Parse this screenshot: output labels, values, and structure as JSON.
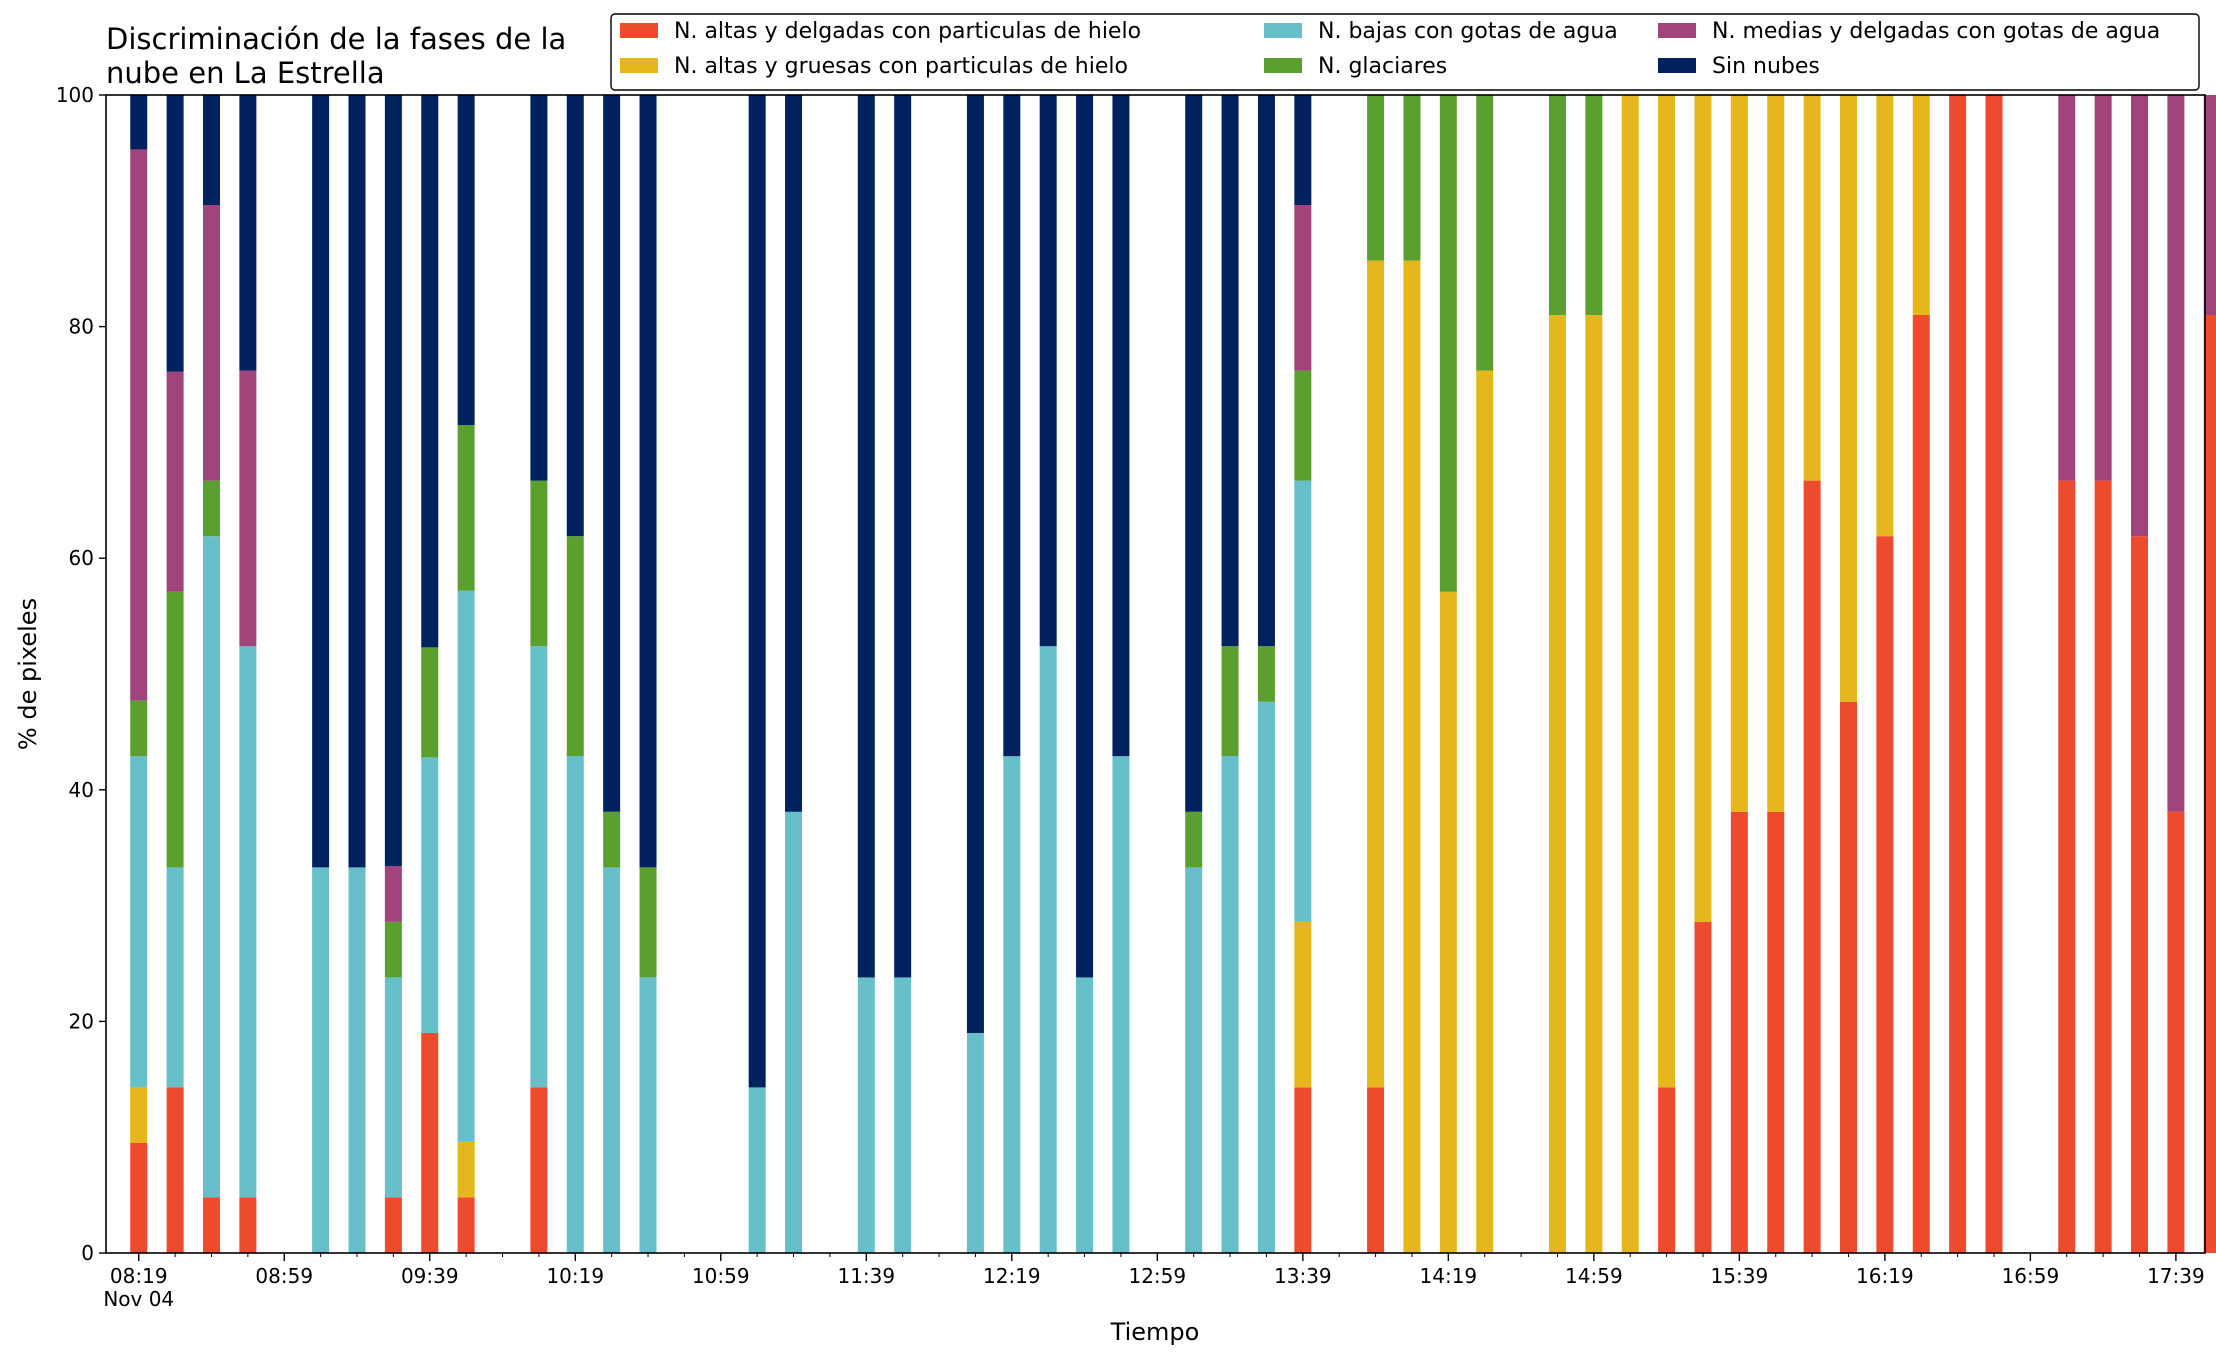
{
  "chart_data": {
    "type": "bar",
    "stacked": true,
    "title_lines": [
      "Discriminación de la fases de la",
      "nube en La Estrella"
    ],
    "xlabel": "Tiempo",
    "ylabel": "% de pixeles",
    "ylim": [
      0,
      100
    ],
    "yticks": [
      "0",
      "20",
      "40",
      "60",
      "80",
      "100"
    ],
    "xlim_minutes": [
      490,
      1067
    ],
    "xticks": [
      {
        "minute": 499,
        "label": "08:19",
        "sublabel": "Nov 04"
      },
      {
        "minute": 539,
        "label": "08:59"
      },
      {
        "minute": 579,
        "label": "09:39"
      },
      {
        "minute": 619,
        "label": "10:19"
      },
      {
        "minute": 659,
        "label": "10:59"
      },
      {
        "minute": 699,
        "label": "11:39"
      },
      {
        "minute": 739,
        "label": "12:19"
      },
      {
        "minute": 779,
        "label": "12:59"
      },
      {
        "minute": 819,
        "label": "13:39"
      },
      {
        "minute": 859,
        "label": "14:19"
      },
      {
        "minute": 899,
        "label": "14:59"
      },
      {
        "minute": 939,
        "label": "15:39"
      },
      {
        "minute": 979,
        "label": "16:19"
      },
      {
        "minute": 1019,
        "label": "16:59"
      },
      {
        "minute": 1059,
        "label": "17:39"
      }
    ],
    "legend_position": "top-right",
    "series": [
      {
        "key": "thin_ice",
        "name": "N. altas y delgadas con particulas de hielo",
        "color": "#ee4a2d"
      },
      {
        "key": "thick_ice",
        "name": "N. altas y gruesas con particulas de hielo",
        "color": "#e6b71c"
      },
      {
        "key": "low_water",
        "name": "N. bajas con gotas de agua",
        "color": "#67bfca"
      },
      {
        "key": "glacier",
        "name": "N. glaciares",
        "color": "#5b9f2f"
      },
      {
        "key": "mid_water",
        "name": "N. medias y delgadas con gotas de agua",
        "color": "#a1447b"
      },
      {
        "key": "clear",
        "name": "Sin nubes",
        "color": "#02215f"
      }
    ],
    "bars": [
      {
        "time": "08:19",
        "values": {
          "thin_ice": 9.5,
          "thick_ice": 4.8,
          "low_water": 28.6,
          "glacier": 4.8,
          "mid_water": 47.6,
          "clear": 4.7
        }
      },
      {
        "time": "08:29",
        "values": {
          "thin_ice": 14.3,
          "thick_ice": 0,
          "low_water": 19.0,
          "glacier": 23.8,
          "mid_water": 19.0,
          "clear": 23.9
        }
      },
      {
        "time": "08:39",
        "values": {
          "thin_ice": 4.8,
          "thick_ice": 0,
          "low_water": 57.1,
          "glacier": 4.8,
          "mid_water": 23.8,
          "clear": 9.5
        }
      },
      {
        "time": "08:49",
        "values": {
          "thin_ice": 4.8,
          "thick_ice": 0,
          "low_water": 47.6,
          "glacier": 0,
          "mid_water": 23.8,
          "clear": 23.8
        }
      },
      {
        "time": "09:09",
        "values": {
          "thin_ice": 0,
          "thick_ice": 0,
          "low_water": 33.3,
          "glacier": 0,
          "mid_water": 0,
          "clear": 66.7
        }
      },
      {
        "time": "09:19",
        "values": {
          "thin_ice": 0,
          "thick_ice": 0,
          "low_water": 33.3,
          "glacier": 0,
          "mid_water": 0,
          "clear": 66.7
        }
      },
      {
        "time": "09:29",
        "values": {
          "thin_ice": 4.8,
          "thick_ice": 0,
          "low_water": 19.0,
          "glacier": 4.8,
          "mid_water": 4.8,
          "clear": 66.6
        }
      },
      {
        "time": "09:39",
        "values": {
          "thin_ice": 19.0,
          "thick_ice": 0,
          "low_water": 23.8,
          "glacier": 9.5,
          "mid_water": 0,
          "clear": 47.7
        }
      },
      {
        "time": "09:49",
        "values": {
          "thin_ice": 4.8,
          "thick_ice": 4.8,
          "low_water": 47.6,
          "glacier": 14.3,
          "mid_water": 0,
          "clear": 28.5
        }
      },
      {
        "time": "10:09",
        "values": {
          "thin_ice": 14.3,
          "thick_ice": 0,
          "low_water": 38.1,
          "glacier": 14.3,
          "mid_water": 0,
          "clear": 33.3
        }
      },
      {
        "time": "10:19",
        "values": {
          "thin_ice": 0,
          "thick_ice": 0,
          "low_water": 42.9,
          "glacier": 19.0,
          "mid_water": 0,
          "clear": 38.1
        }
      },
      {
        "time": "10:29",
        "values": {
          "thin_ice": 0,
          "thick_ice": 0,
          "low_water": 33.3,
          "glacier": 4.8,
          "mid_water": 0,
          "clear": 61.9
        }
      },
      {
        "time": "10:39",
        "values": {
          "thin_ice": 0,
          "thick_ice": 0,
          "low_water": 23.8,
          "glacier": 9.5,
          "mid_water": 0,
          "clear": 66.7
        }
      },
      {
        "time": "11:09",
        "values": {
          "thin_ice": 0,
          "thick_ice": 0,
          "low_water": 14.3,
          "glacier": 0,
          "mid_water": 0,
          "clear": 85.7
        }
      },
      {
        "time": "11:19",
        "values": {
          "thin_ice": 0,
          "thick_ice": 0,
          "low_water": 38.1,
          "glacier": 0,
          "mid_water": 0,
          "clear": 61.9
        }
      },
      {
        "time": "11:39",
        "values": {
          "thin_ice": 0,
          "thick_ice": 0,
          "low_water": 23.8,
          "glacier": 0,
          "mid_water": 0,
          "clear": 76.2
        }
      },
      {
        "time": "11:49",
        "values": {
          "thin_ice": 0,
          "thick_ice": 0,
          "low_water": 23.8,
          "glacier": 0,
          "mid_water": 0,
          "clear": 76.2
        }
      },
      {
        "time": "12:09",
        "values": {
          "thin_ice": 0,
          "thick_ice": 0,
          "low_water": 19.0,
          "glacier": 0,
          "mid_water": 0,
          "clear": 81.0
        }
      },
      {
        "time": "12:19",
        "values": {
          "thin_ice": 0,
          "thick_ice": 0,
          "low_water": 42.9,
          "glacier": 0,
          "mid_water": 0,
          "clear": 57.1
        }
      },
      {
        "time": "12:29",
        "values": {
          "thin_ice": 0,
          "thick_ice": 0,
          "low_water": 52.4,
          "glacier": 0,
          "mid_water": 0,
          "clear": 47.6
        }
      },
      {
        "time": "12:39",
        "values": {
          "thin_ice": 0,
          "thick_ice": 0,
          "low_water": 23.8,
          "glacier": 0,
          "mid_water": 0,
          "clear": 76.2
        }
      },
      {
        "time": "12:49",
        "values": {
          "thin_ice": 0,
          "thick_ice": 0,
          "low_water": 42.9,
          "glacier": 0,
          "mid_water": 0,
          "clear": 57.1
        }
      },
      {
        "time": "13:09",
        "values": {
          "thin_ice": 0,
          "thick_ice": 0,
          "low_water": 33.3,
          "glacier": 4.8,
          "mid_water": 0,
          "clear": 61.9
        }
      },
      {
        "time": "13:19",
        "values": {
          "thin_ice": 0,
          "thick_ice": 0,
          "low_water": 42.9,
          "glacier": 9.5,
          "mid_water": 0,
          "clear": 47.6
        }
      },
      {
        "time": "13:29",
        "values": {
          "thin_ice": 0,
          "thick_ice": 0,
          "low_water": 47.6,
          "glacier": 4.8,
          "mid_water": 0,
          "clear": 47.6
        }
      },
      {
        "time": "13:39",
        "values": {
          "thin_ice": 14.3,
          "thick_ice": 14.3,
          "low_water": 38.1,
          "glacier": 9.5,
          "mid_water": 14.3,
          "clear": 9.5
        }
      },
      {
        "time": "13:59",
        "values": {
          "thin_ice": 14.3,
          "thick_ice": 71.4,
          "low_water": 0,
          "glacier": 14.3,
          "mid_water": 0,
          "clear": 0
        }
      },
      {
        "time": "14:09",
        "values": {
          "thin_ice": 0,
          "thick_ice": 85.7,
          "low_water": 0,
          "glacier": 14.3,
          "mid_water": 0,
          "clear": 0
        }
      },
      {
        "time": "14:19",
        "values": {
          "thin_ice": 0,
          "thick_ice": 57.1,
          "low_water": 0,
          "glacier": 42.9,
          "mid_water": 0,
          "clear": 0
        }
      },
      {
        "time": "14:29",
        "values": {
          "thin_ice": 0,
          "thick_ice": 76.2,
          "low_water": 0,
          "glacier": 23.8,
          "mid_water": 0,
          "clear": 0
        }
      },
      {
        "time": "14:49",
        "values": {
          "thin_ice": 0,
          "thick_ice": 81.0,
          "low_water": 0,
          "glacier": 19.0,
          "mid_water": 0,
          "clear": 0
        }
      },
      {
        "time": "14:59",
        "values": {
          "thin_ice": 0,
          "thick_ice": 81.0,
          "low_water": 0,
          "glacier": 19.0,
          "mid_water": 0,
          "clear": 0
        }
      },
      {
        "time": "15:09",
        "values": {
          "thin_ice": 0,
          "thick_ice": 100,
          "low_water": 0,
          "glacier": 0,
          "mid_water": 0,
          "clear": 0
        }
      },
      {
        "time": "15:19",
        "values": {
          "thin_ice": 14.3,
          "thick_ice": 85.7,
          "low_water": 0,
          "glacier": 0,
          "mid_water": 0,
          "clear": 0
        }
      },
      {
        "time": "15:29",
        "values": {
          "thin_ice": 28.6,
          "thick_ice": 71.4,
          "low_water": 0,
          "glacier": 0,
          "mid_water": 0,
          "clear": 0
        }
      },
      {
        "time": "15:39",
        "values": {
          "thin_ice": 38.1,
          "thick_ice": 61.9,
          "low_water": 0,
          "glacier": 0,
          "mid_water": 0,
          "clear": 0
        }
      },
      {
        "time": "15:49",
        "values": {
          "thin_ice": 38.1,
          "thick_ice": 61.9,
          "low_water": 0,
          "glacier": 0,
          "mid_water": 0,
          "clear": 0
        }
      },
      {
        "time": "15:59",
        "values": {
          "thin_ice": 66.7,
          "thick_ice": 33.3,
          "low_water": 0,
          "glacier": 0,
          "mid_water": 0,
          "clear": 0
        }
      },
      {
        "time": "16:09",
        "values": {
          "thin_ice": 47.6,
          "thick_ice": 52.4,
          "low_water": 0,
          "glacier": 0,
          "mid_water": 0,
          "clear": 0
        }
      },
      {
        "time": "16:19",
        "values": {
          "thin_ice": 61.9,
          "thick_ice": 38.1,
          "low_water": 0,
          "glacier": 0,
          "mid_water": 0,
          "clear": 0
        }
      },
      {
        "time": "16:29",
        "values": {
          "thin_ice": 81.0,
          "thick_ice": 19.0,
          "low_water": 0,
          "glacier": 0,
          "mid_water": 0,
          "clear": 0
        }
      },
      {
        "time": "16:39",
        "values": {
          "thin_ice": 100,
          "thick_ice": 0,
          "low_water": 0,
          "glacier": 0,
          "mid_water": 0,
          "clear": 0
        }
      },
      {
        "time": "16:49",
        "values": {
          "thin_ice": 100,
          "thick_ice": 0,
          "low_water": 0,
          "glacier": 0,
          "mid_water": 0,
          "clear": 0
        }
      },
      {
        "time": "17:09",
        "values": {
          "thin_ice": 66.7,
          "thick_ice": 0,
          "low_water": 0,
          "glacier": 0,
          "mid_water": 33.3,
          "clear": 0
        }
      },
      {
        "time": "17:19",
        "values": {
          "thin_ice": 66.7,
          "thick_ice": 0,
          "low_water": 0,
          "glacier": 0,
          "mid_water": 33.3,
          "clear": 0
        }
      },
      {
        "time": "17:29",
        "values": {
          "thin_ice": 61.9,
          "thick_ice": 0,
          "low_water": 0,
          "glacier": 0,
          "mid_water": 38.1,
          "clear": 0
        }
      },
      {
        "time": "17:39",
        "values": {
          "thin_ice": 38.1,
          "thick_ice": 0,
          "low_water": 0,
          "glacier": 0,
          "mid_water": 61.9,
          "clear": 0
        }
      },
      {
        "time": "17:49",
        "values": {
          "thin_ice": 81.0,
          "thick_ice": 0,
          "low_water": 0,
          "glacier": 0,
          "mid_water": 19.0,
          "clear": 0
        }
      }
    ]
  }
}
